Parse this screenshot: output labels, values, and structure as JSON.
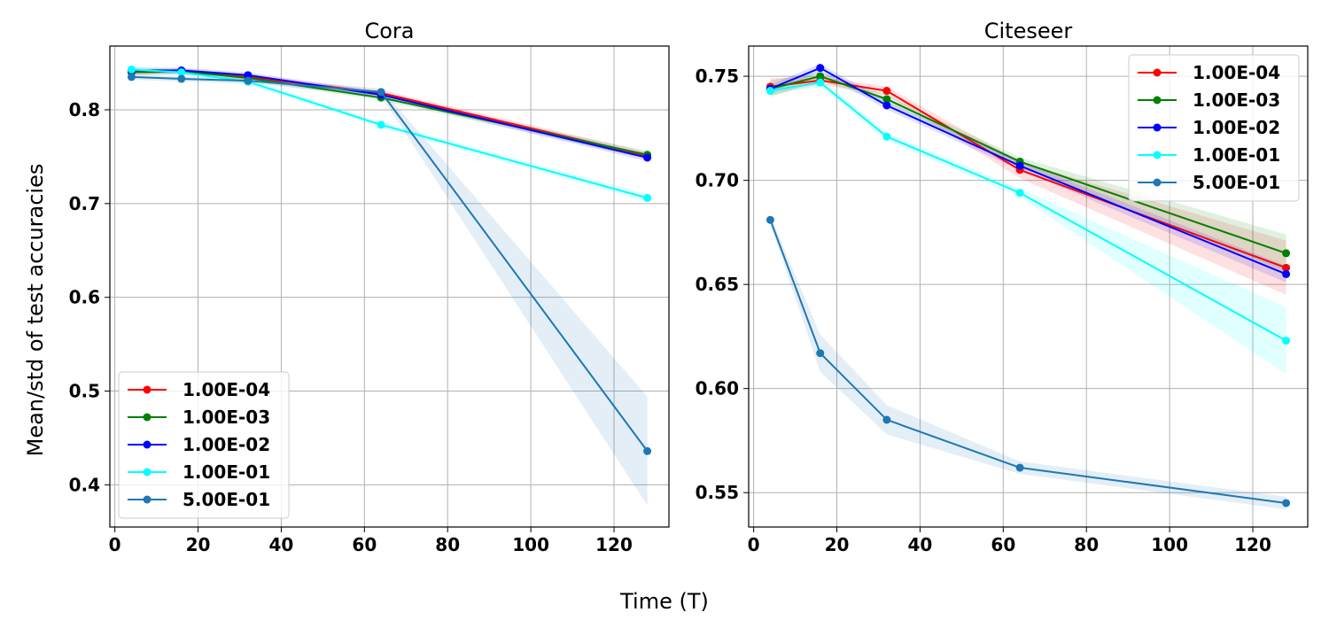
{
  "figure": {
    "xlabel": "Time (T)",
    "ylabel": "Mean/std of test accuracies"
  },
  "colors": {
    "1.00E-04": "#ff0000",
    "1.00E-03": "#008000",
    "1.00E-02": "#0000ff",
    "1.00E-01": "#00ffff",
    "5.00E-01": "#1f77b4"
  },
  "chart_data": [
    {
      "type": "line",
      "title": "Cora",
      "x": [
        4,
        16,
        32,
        64,
        128
      ],
      "xlim": [
        -1.2,
        133.2
      ],
      "ylim": [
        0.355,
        0.868
      ],
      "xticks": [
        0,
        20,
        40,
        60,
        80,
        100,
        120
      ],
      "xtick_labels": [
        "0",
        "20",
        "40",
        "60",
        "80",
        "100",
        "120"
      ],
      "yticks": [
        0.4,
        0.5,
        0.6,
        0.7,
        0.8
      ],
      "ytick_labels": [
        "0.4",
        "0.5",
        "0.6",
        "0.7",
        "0.8"
      ],
      "grid": true,
      "legend_position": "lower-left",
      "series": [
        {
          "name": "1.00E-04",
          "values": [
            0.84,
            0.841,
            0.835,
            0.818,
            0.751
          ],
          "std": [
            0.003,
            0.003,
            0.003,
            0.003,
            0.004
          ]
        },
        {
          "name": "1.00E-03",
          "values": [
            0.84,
            0.841,
            0.834,
            0.813,
            0.752
          ],
          "std": [
            0.003,
            0.003,
            0.003,
            0.003,
            0.004
          ]
        },
        {
          "name": "1.00E-02",
          "values": [
            0.842,
            0.842,
            0.837,
            0.816,
            0.749
          ],
          "std": [
            0.003,
            0.003,
            0.003,
            0.003,
            0.004
          ]
        },
        {
          "name": "1.00E-01",
          "values": [
            0.843,
            0.84,
            0.83,
            0.784,
            0.706
          ],
          "std": [
            0.003,
            0.003,
            0.003,
            0.003,
            0.004
          ]
        },
        {
          "name": "5.00E-01",
          "values": [
            0.835,
            0.833,
            0.831,
            0.819,
            0.436
          ],
          "std": [
            0.003,
            0.003,
            0.003,
            0.004,
            0.058
          ]
        }
      ]
    },
    {
      "type": "line",
      "title": "Citeseer",
      "x": [
        4,
        16,
        32,
        64,
        128
      ],
      "xlim": [
        -1.2,
        133.2
      ],
      "ylim": [
        0.5335,
        0.7645
      ],
      "xticks": [
        0,
        20,
        40,
        60,
        80,
        100,
        120
      ],
      "xtick_labels": [
        "0",
        "20",
        "40",
        "60",
        "80",
        "100",
        "120"
      ],
      "yticks": [
        0.55,
        0.6,
        0.65,
        0.7,
        0.75
      ],
      "ytick_labels": [
        "0.55",
        "0.60",
        "0.65",
        "0.70",
        "0.75"
      ],
      "grid": true,
      "legend_position": "top-right",
      "series": [
        {
          "name": "1.00E-04",
          "values": [
            0.745,
            0.748,
            0.743,
            0.705,
            0.658
          ],
          "std": [
            0.004,
            0.002,
            0.002,
            0.004,
            0.013
          ]
        },
        {
          "name": "1.00E-03",
          "values": [
            0.744,
            0.75,
            0.739,
            0.709,
            0.665
          ],
          "std": [
            0.004,
            0.002,
            0.002,
            0.002,
            0.009
          ]
        },
        {
          "name": "1.00E-02",
          "values": [
            0.744,
            0.754,
            0.736,
            0.707,
            0.655
          ],
          "std": [
            0.002,
            0.002,
            0.002,
            0.002,
            0.004
          ]
        },
        {
          "name": "1.00E-01",
          "values": [
            0.743,
            0.747,
            0.721,
            0.694,
            0.623
          ],
          "std": [
            0.002,
            0.002,
            0.002,
            0.002,
            0.016
          ]
        },
        {
          "name": "5.00E-01",
          "values": [
            0.681,
            0.617,
            0.585,
            0.562,
            0.545
          ],
          "std": [
            0.002,
            0.009,
            0.007,
            0.003,
            0.003
          ]
        }
      ]
    }
  ]
}
